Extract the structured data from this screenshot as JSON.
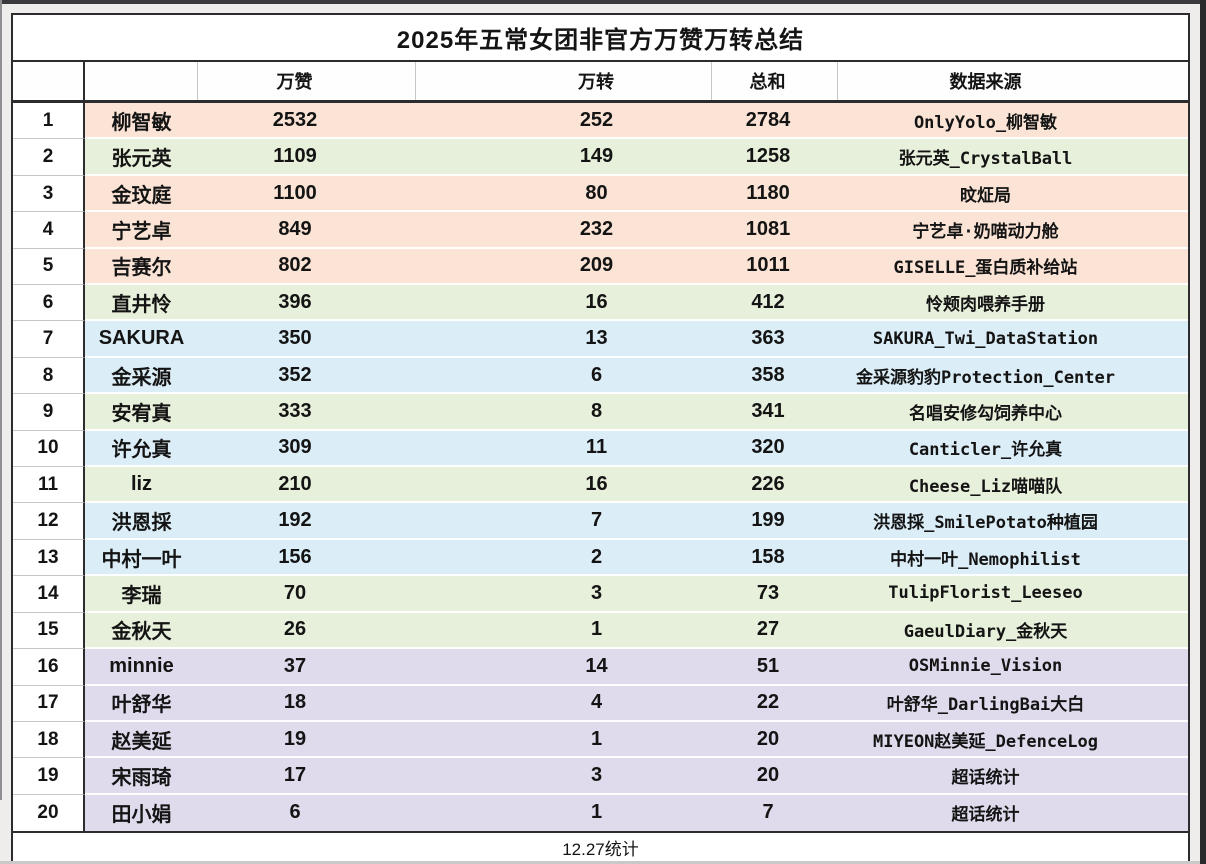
{
  "colors": {
    "peach": "#fbe3d5",
    "green": "#e7f0da",
    "blue": "#dbedf6",
    "purple": "#dfdbec",
    "border_dark": "#2c2c2e"
  },
  "chart_data": {
    "type": "table",
    "title": "2025年五常女团非官方万赞万转总结",
    "header": {
      "rank": "",
      "name": "",
      "likes": "万赞",
      "reposts": "万转",
      "total": "总和",
      "source": "数据来源"
    },
    "footer": "12.27统计",
    "rows": [
      {
        "rank": "1",
        "name": "柳智敏",
        "likes": "2532",
        "reposts": "252",
        "total": "2784",
        "source": "OnlyYolo_柳智敏",
        "group": "peach"
      },
      {
        "rank": "2",
        "name": "张元英",
        "likes": "1109",
        "reposts": "149",
        "total": "1258",
        "source": "张元英_CrystalBall",
        "group": "green"
      },
      {
        "rank": "3",
        "name": "金玟庭",
        "likes": "1100",
        "reposts": "80",
        "total": "1180",
        "source": "旼炡局",
        "group": "peach"
      },
      {
        "rank": "4",
        "name": "宁艺卓",
        "likes": "849",
        "reposts": "232",
        "total": "1081",
        "source": "宁艺卓·奶喵动力舱",
        "group": "peach"
      },
      {
        "rank": "5",
        "name": "吉赛尔",
        "likes": "802",
        "reposts": "209",
        "total": "1011",
        "source": "GISELLE_蛋白质补给站",
        "group": "peach"
      },
      {
        "rank": "6",
        "name": "直井怜",
        "likes": "396",
        "reposts": "16",
        "total": "412",
        "source": "怜颊肉喂养手册",
        "group": "green"
      },
      {
        "rank": "7",
        "name": "SAKURA",
        "likes": "350",
        "reposts": "13",
        "total": "363",
        "source": "SAKURA_Twi_DataStation",
        "group": "blue"
      },
      {
        "rank": "8",
        "name": "金采源",
        "likes": "352",
        "reposts": "6",
        "total": "358",
        "source": "金采源豹豹Protection_Center",
        "group": "blue"
      },
      {
        "rank": "9",
        "name": "安宥真",
        "likes": "333",
        "reposts": "8",
        "total": "341",
        "source": "名唱安修勾饲养中心",
        "group": "green"
      },
      {
        "rank": "10",
        "name": "许允真",
        "likes": "309",
        "reposts": "11",
        "total": "320",
        "source": "Canticler_许允真",
        "group": "blue"
      },
      {
        "rank": "11",
        "name": "liz",
        "likes": "210",
        "reposts": "16",
        "total": "226",
        "source": "Cheese_Liz喵喵队",
        "group": "green"
      },
      {
        "rank": "12",
        "name": "洪恩採",
        "likes": "192",
        "reposts": "7",
        "total": "199",
        "source": "洪恩採_SmilePotato种植园",
        "group": "blue"
      },
      {
        "rank": "13",
        "name": "中村一叶",
        "likes": "156",
        "reposts": "2",
        "total": "158",
        "source": "中村一叶_Nemophilist",
        "group": "blue"
      },
      {
        "rank": "14",
        "name": "李瑞",
        "likes": "70",
        "reposts": "3",
        "total": "73",
        "source": "TulipFlorist_Leeseo",
        "group": "green"
      },
      {
        "rank": "15",
        "name": "金秋天",
        "likes": "26",
        "reposts": "1",
        "total": "27",
        "source": "GaeulDiary_金秋天",
        "group": "green"
      },
      {
        "rank": "16",
        "name": "minnie",
        "likes": "37",
        "reposts": "14",
        "total": "51",
        "source": "OSMinnie_Vision",
        "group": "purple"
      },
      {
        "rank": "17",
        "name": "叶舒华",
        "likes": "18",
        "reposts": "4",
        "total": "22",
        "source": "叶舒华_DarlingBai大白",
        "group": "purple"
      },
      {
        "rank": "18",
        "name": "赵美延",
        "likes": "19",
        "reposts": "1",
        "total": "20",
        "source": "MIYEON赵美延_DefenceLog",
        "group": "purple"
      },
      {
        "rank": "19",
        "name": "宋雨琦",
        "likes": "17",
        "reposts": "3",
        "total": "20",
        "source": "超话统计",
        "group": "purple"
      },
      {
        "rank": "20",
        "name": "田小娟",
        "likes": "6",
        "reposts": "1",
        "total": "7",
        "source": "超话统计",
        "group": "purple"
      }
    ]
  }
}
